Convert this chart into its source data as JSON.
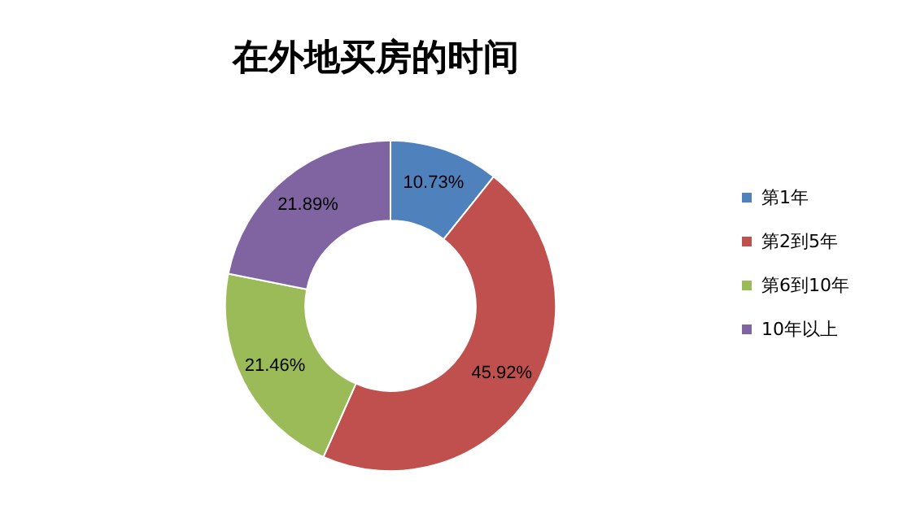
{
  "chart_data": {
    "type": "donut",
    "title": "在外地买房的时间",
    "categories": [
      "第1年",
      "第2到5年",
      "第6到10年",
      "10年以上"
    ],
    "values": [
      10.73,
      45.92,
      21.46,
      21.89
    ],
    "value_labels": [
      "10.73%",
      "45.92%",
      "21.46%",
      "21.89%"
    ],
    "colors": [
      "#4f81bd",
      "#c0504d",
      "#9bbb59",
      "#8064a2"
    ],
    "legend": "right"
  }
}
